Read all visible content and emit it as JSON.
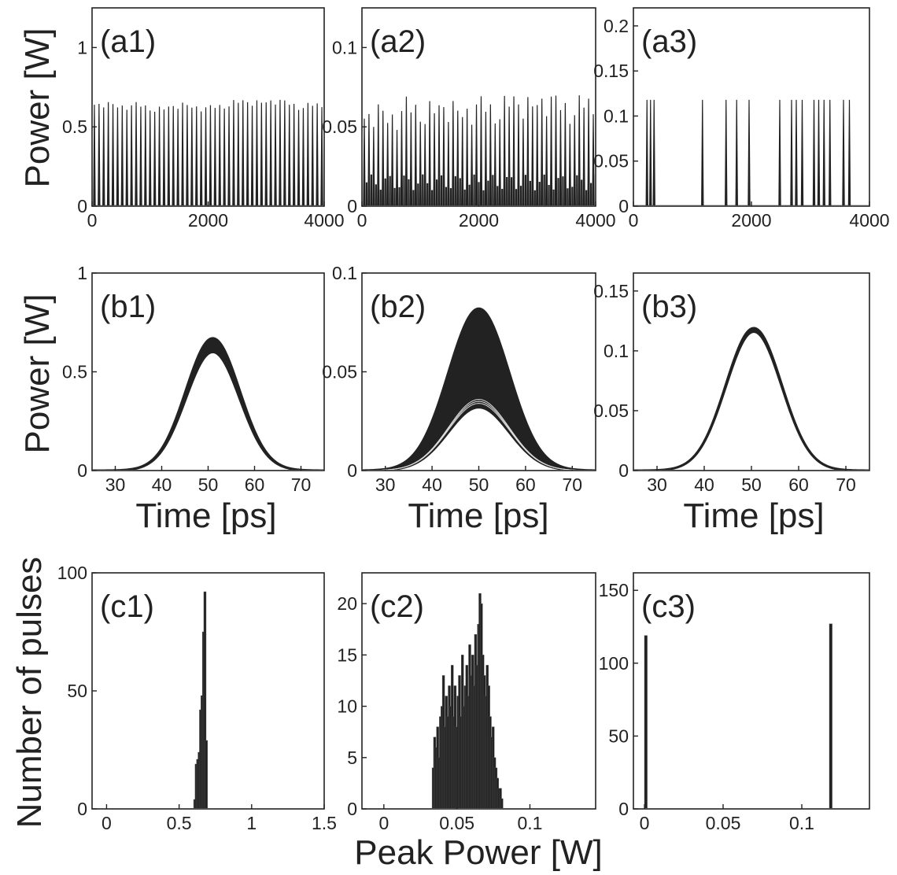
{
  "figure": {
    "ylabel_row_a": "Power [W]",
    "ylabel_row_b": "Power [W]",
    "ylabel_row_c": "Number of pulses",
    "xlabel_row_b_1": "Time [ps]",
    "xlabel_row_b_2": "Time [ps]",
    "xlabel_row_b_3": "Time [ps]",
    "xlabel_row_c": "Peak Power [W]",
    "line_color": "#222222",
    "background": "#ffffff"
  },
  "chart_data": [
    {
      "id": "a1",
      "panel_label": "(a1)",
      "type": "line",
      "style": "pulse-train",
      "xlim": [
        0,
        4000
      ],
      "ylim": [
        0,
        1.25
      ],
      "xticks": [
        0,
        2000,
        4000
      ],
      "xtick_labels": [
        "0",
        "2000",
        "4000"
      ],
      "yticks": [
        0,
        0.5,
        1
      ],
      "ytick_labels": [
        "0",
        "0.5",
        "1"
      ],
      "pulse_spacing": 80,
      "pulse_width": 10,
      "peak_envelope": [
        [
          0,
          0.64
        ],
        [
          800,
          0.63
        ],
        [
          1200,
          0.61
        ],
        [
          1600,
          0.64
        ],
        [
          2000,
          0.61
        ],
        [
          2400,
          0.65
        ],
        [
          3200,
          0.66
        ],
        [
          3600,
          0.63
        ],
        [
          4000,
          0.63
        ]
      ],
      "peak_variation": 0.03
    },
    {
      "id": "a2",
      "panel_label": "(a2)",
      "type": "line",
      "style": "pulse-train",
      "xlim": [
        0,
        4000
      ],
      "ylim": [
        0,
        0.125
      ],
      "xticks": [
        0,
        2000,
        4000
      ],
      "xtick_labels": [
        "0",
        "2000",
        "4000"
      ],
      "yticks": [
        0,
        0.05,
        0.1
      ],
      "ytick_labels": [
        "0",
        "0.05",
        "0.1"
      ],
      "pulse_spacing": 80,
      "pulse_width": 10,
      "peak_envelope": [
        [
          0,
          0.055
        ],
        [
          1000,
          0.06
        ],
        [
          2000,
          0.06
        ],
        [
          3000,
          0.065
        ],
        [
          4000,
          0.06
        ]
      ],
      "peak_variation": 0.012,
      "low_band": [
        0.01,
        0.02
      ]
    },
    {
      "id": "a3",
      "panel_label": "(a3)",
      "type": "line",
      "style": "pulse-bursts",
      "xlim": [
        0,
        4000
      ],
      "ylim": [
        0,
        0.22
      ],
      "xticks": [
        0,
        2000,
        4000
      ],
      "xtick_labels": [
        "0",
        "2000",
        "4000"
      ],
      "yticks": [
        0,
        0.05,
        0.1,
        0.15,
        0.2
      ],
      "ytick_labels": [
        "0",
        "0.05",
        "0.1",
        "0.15",
        "0.2"
      ],
      "pulse_positions": [
        230,
        290,
        350,
        1170,
        1570,
        1750,
        1960,
        2480,
        2680,
        2760,
        2860,
        3060,
        3140,
        3230,
        3330,
        3560,
        3660
      ],
      "peak": 0.118,
      "pulse_width": 10
    },
    {
      "id": "b1",
      "panel_label": "(b1)",
      "type": "line",
      "style": "pulse-envelope",
      "xlim": [
        25,
        75
      ],
      "ylim": [
        0,
        1
      ],
      "xticks": [
        30,
        40,
        50,
        60,
        70
      ],
      "xtick_labels": [
        "30",
        "40",
        "50",
        "60",
        "70"
      ],
      "yticks": [
        0,
        0.5,
        1
      ],
      "ytick_labels": [
        "0",
        "0.5",
        "1"
      ],
      "center": 51,
      "sigma": 5.8,
      "peak_low": 0.6,
      "peak_high": 0.67,
      "lines": []
    },
    {
      "id": "b2",
      "panel_label": "(b2)",
      "type": "line",
      "style": "pulse-envelope",
      "xlim": [
        25,
        75
      ],
      "ylim": [
        0,
        0.1
      ],
      "xticks": [
        30,
        40,
        50,
        60,
        70
      ],
      "xtick_labels": [
        "30",
        "40",
        "50",
        "60",
        "70"
      ],
      "yticks": [
        0,
        0.05,
        0.1
      ],
      "ytick_labels": [
        "0",
        "0.05",
        "0.1"
      ],
      "center": 50,
      "sigma": 6.5,
      "peak_low": 0.032,
      "peak_high": 0.082,
      "lines": [
        0.036,
        0.035,
        0.034
      ]
    },
    {
      "id": "b3",
      "panel_label": "(b3)",
      "type": "line",
      "style": "pulse-envelope",
      "xlim": [
        25,
        75
      ],
      "ylim": [
        0,
        0.165
      ],
      "xticks": [
        30,
        40,
        50,
        60,
        70
      ],
      "xtick_labels": [
        "30",
        "40",
        "50",
        "60",
        "70"
      ],
      "yticks": [
        0,
        0.05,
        0.1,
        0.15
      ],
      "ytick_labels": [
        "0",
        "0.05",
        "0.1",
        "0.15"
      ],
      "center": 50.5,
      "sigma": 5.9,
      "peak_low": 0.116,
      "peak_high": 0.119,
      "lines": []
    },
    {
      "id": "c1",
      "panel_label": "(c1)",
      "type": "bar",
      "style": "histogram",
      "xlim": [
        -0.1,
        1.5
      ],
      "ylim": [
        0,
        100
      ],
      "xticks": [
        0,
        0.5,
        1,
        1.5
      ],
      "xtick_labels": [
        "0",
        "0.5",
        "1",
        "1.5"
      ],
      "yticks": [
        0,
        50,
        100
      ],
      "ytick_labels": [
        "0",
        "50",
        "100"
      ],
      "bin_width": 0.01,
      "bins": [
        [
          0.6,
          4
        ],
        [
          0.61,
          19
        ],
        [
          0.62,
          21
        ],
        [
          0.63,
          24
        ],
        [
          0.64,
          42
        ],
        [
          0.65,
          48
        ],
        [
          0.66,
          75
        ],
        [
          0.67,
          92
        ],
        [
          0.68,
          29
        ]
      ]
    },
    {
      "id": "c2",
      "panel_label": "(c2)",
      "type": "bar",
      "style": "histogram",
      "xlim": [
        -0.015,
        0.145
      ],
      "ylim": [
        0,
        23
      ],
      "xticks": [
        0,
        0.05,
        0.1
      ],
      "xtick_labels": [
        "0",
        "0.05",
        "0.1"
      ],
      "yticks": [
        0,
        5,
        10,
        15,
        20
      ],
      "ytick_labels": [
        "0",
        "5",
        "10",
        "15",
        "20"
      ],
      "bin_width": 0.001,
      "bins": [
        [
          0.033,
          4
        ],
        [
          0.034,
          7
        ],
        [
          0.035,
          6
        ],
        [
          0.036,
          8
        ],
        [
          0.037,
          5
        ],
        [
          0.038,
          9
        ],
        [
          0.039,
          10
        ],
        [
          0.04,
          13
        ],
        [
          0.041,
          8
        ],
        [
          0.042,
          11
        ],
        [
          0.043,
          9
        ],
        [
          0.044,
          12
        ],
        [
          0.045,
          10
        ],
        [
          0.046,
          14
        ],
        [
          0.047,
          9
        ],
        [
          0.048,
          12
        ],
        [
          0.049,
          8
        ],
        [
          0.05,
          11
        ],
        [
          0.051,
          13
        ],
        [
          0.052,
          9
        ],
        [
          0.053,
          15
        ],
        [
          0.054,
          10
        ],
        [
          0.055,
          12
        ],
        [
          0.056,
          14
        ],
        [
          0.057,
          11
        ],
        [
          0.058,
          16
        ],
        [
          0.059,
          13
        ],
        [
          0.06,
          15
        ],
        [
          0.061,
          12
        ],
        [
          0.062,
          17
        ],
        [
          0.063,
          14
        ],
        [
          0.064,
          18
        ],
        [
          0.065,
          21
        ],
        [
          0.066,
          20
        ],
        [
          0.067,
          15
        ],
        [
          0.068,
          13
        ],
        [
          0.069,
          11
        ],
        [
          0.07,
          14
        ],
        [
          0.071,
          12
        ],
        [
          0.072,
          9
        ],
        [
          0.073,
          7
        ],
        [
          0.074,
          8
        ],
        [
          0.075,
          5
        ],
        [
          0.076,
          4
        ],
        [
          0.077,
          3
        ],
        [
          0.078,
          2
        ],
        [
          0.079,
          2
        ],
        [
          0.08,
          1
        ]
      ]
    },
    {
      "id": "c3",
      "panel_label": "(c3)",
      "type": "bar",
      "style": "histogram",
      "xlim": [
        -0.007,
        0.143
      ],
      "ylim": [
        0,
        162
      ],
      "xticks": [
        0,
        0.05,
        0.1
      ],
      "xtick_labels": [
        "0",
        "0.05",
        "0.1"
      ],
      "yticks": [
        0,
        50,
        100,
        150
      ],
      "ytick_labels": [
        "0",
        "50",
        "100",
        "150"
      ],
      "bin_width": 0.0018,
      "bins": [
        [
          0,
          119
        ],
        [
          0.1175,
          127
        ]
      ]
    }
  ]
}
